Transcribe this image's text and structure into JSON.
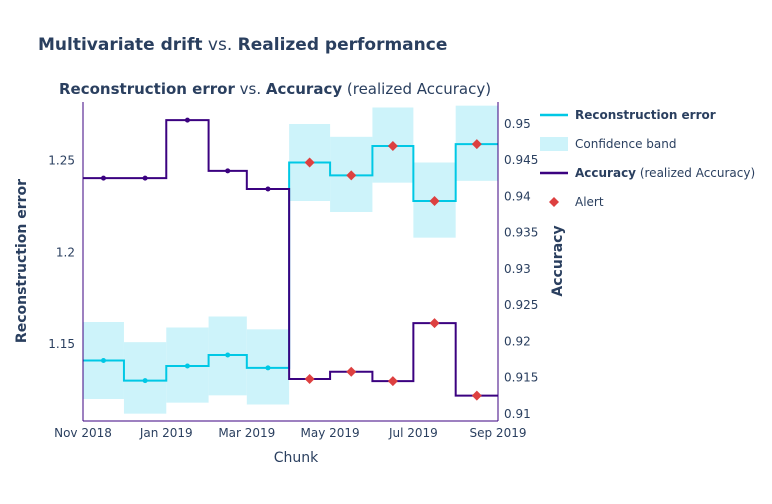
{
  "figure_title": {
    "part1": "Multivariate drift",
    "part2": " vs. ",
    "part3": "Realized performance"
  },
  "subplot_title": {
    "part1": "Reconstruction error",
    "part2": " vs. ",
    "part3": "Accuracy",
    "part4": " (realized Accuracy)"
  },
  "legend": {
    "items": [
      {
        "label_bold": "Reconstruction error",
        "label_rest": "",
        "symbol": "line",
        "color": "#00c8e5"
      },
      {
        "label_bold": "",
        "label_rest": "Confidence band",
        "symbol": "band",
        "color": "#cdf3fa"
      },
      {
        "label_bold": "Accuracy",
        "label_rest": " (realized Accuracy)",
        "symbol": "line",
        "color": "#3b0280"
      },
      {
        "label_bold": "",
        "label_rest": "Alert",
        "symbol": "diamond",
        "color": "#dd4040"
      }
    ]
  },
  "colors": {
    "title": "#2a3f5f",
    "recon": "#00c8e5",
    "band": "#cdf3fa",
    "accuracy": "#3b0280",
    "alert": "#dd4040",
    "axis_label": "#2a3f5f"
  },
  "chart_data": {
    "type": "line",
    "step": "hv",
    "x_axis": {
      "label": "Chunk",
      "ticks": [
        "Nov 2018",
        "Jan 2019",
        "Mar 2019",
        "May 2019",
        "Jul 2019",
        "Sep 2019"
      ],
      "range": [
        "Nov 2018",
        "Sep 2019"
      ],
      "chunk_starts": [
        "2018-11-01",
        "2018-12-01",
        "2019-01-01",
        "2019-02-01",
        "2019-03-01",
        "2019-04-01",
        "2019-05-01",
        "2019-06-01",
        "2019-07-01",
        "2019-08-01",
        "2019-09-01"
      ]
    },
    "y_left": {
      "label": "Reconstruction error",
      "range": [
        1.108,
        1.282
      ],
      "ticks": [
        1.15,
        1.2,
        1.25
      ]
    },
    "y_right": {
      "label": "Accuracy",
      "range": [
        0.909,
        0.953
      ],
      "ticks": [
        0.91,
        0.915,
        0.92,
        0.925,
        0.93,
        0.935,
        0.94,
        0.945,
        0.95
      ]
    },
    "series": [
      {
        "name": "Reconstruction error",
        "axis": "left",
        "values": [
          1.141,
          1.13,
          1.138,
          1.144,
          1.137,
          1.249,
          1.242,
          1.258,
          1.228,
          1.259
        ],
        "band_lower": [
          1.12,
          1.112,
          1.118,
          1.122,
          1.117,
          1.228,
          1.222,
          1.238,
          1.208,
          1.239
        ],
        "band_upper": [
          1.162,
          1.151,
          1.159,
          1.165,
          1.158,
          1.27,
          1.263,
          1.279,
          1.249,
          1.28
        ],
        "alerts": [
          false,
          false,
          false,
          false,
          false,
          true,
          true,
          true,
          true,
          true
        ]
      },
      {
        "name": "Accuracy",
        "axis": "right",
        "values": [
          0.9425,
          0.9425,
          0.9505,
          0.9435,
          0.941,
          0.9148,
          0.9158,
          0.9145,
          0.9225,
          0.9125
        ],
        "alerts": [
          false,
          false,
          false,
          false,
          false,
          true,
          true,
          true,
          true,
          true
        ]
      }
    ]
  }
}
